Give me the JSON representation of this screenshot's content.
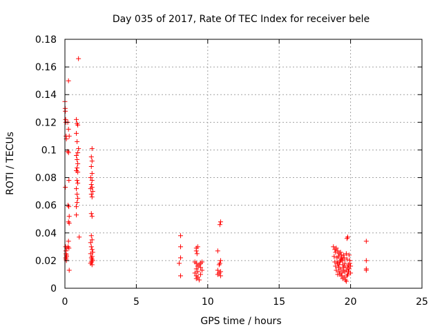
{
  "chart_data": {
    "type": "scatter",
    "title": "Day 035 of 2017, Rate Of TEC Index for receiver bele",
    "xlabel": "GPS time / hours",
    "ylabel": "ROTI / TECUs",
    "xlim": [
      0,
      25
    ],
    "ylim": [
      0,
      0.18
    ],
    "xticks": [
      "0",
      "5",
      "10",
      "15",
      "20",
      "25"
    ],
    "yticks": [
      "0",
      "0.02",
      "0.04",
      "0.06",
      "0.08",
      "0.1",
      "0.12",
      "0.14",
      "0.16",
      "0.18"
    ],
    "grid": true,
    "marker": "plus",
    "color": "#ff0000",
    "points": [
      [
        0.0,
        0.135
      ],
      [
        0.02,
        0.13
      ],
      [
        0.03,
        0.128
      ],
      [
        0.05,
        0.122
      ],
      [
        0.06,
        0.12
      ],
      [
        0.08,
        0.11
      ],
      [
        0.1,
        0.108
      ],
      [
        0.03,
        0.073
      ],
      [
        0.05,
        0.03
      ],
      [
        0.07,
        0.027
      ],
      [
        0.08,
        0.025
      ],
      [
        0.1,
        0.024
      ],
      [
        0.06,
        0.022
      ],
      [
        0.08,
        0.021
      ],
      [
        0.1,
        0.02
      ],
      [
        0.12,
        0.023
      ],
      [
        0.14,
        0.029
      ],
      [
        0.25,
        0.15
      ],
      [
        0.2,
        0.12
      ],
      [
        0.25,
        0.115
      ],
      [
        0.3,
        0.11
      ],
      [
        0.2,
        0.099
      ],
      [
        0.25,
        0.098
      ],
      [
        0.28,
        0.078
      ],
      [
        0.22,
        0.06
      ],
      [
        0.27,
        0.059
      ],
      [
        0.3,
        0.052
      ],
      [
        0.25,
        0.048
      ],
      [
        0.3,
        0.047
      ],
      [
        0.25,
        0.034
      ],
      [
        0.22,
        0.03
      ],
      [
        0.28,
        0.029
      ],
      [
        0.3,
        0.013
      ],
      [
        0.95,
        0.166
      ],
      [
        0.8,
        0.122
      ],
      [
        0.85,
        0.119
      ],
      [
        0.9,
        0.118
      ],
      [
        0.8,
        0.112
      ],
      [
        0.85,
        0.106
      ],
      [
        0.95,
        0.101
      ],
      [
        0.9,
        0.098
      ],
      [
        0.8,
        0.096
      ],
      [
        0.85,
        0.093
      ],
      [
        0.9,
        0.09
      ],
      [
        0.85,
        0.087
      ],
      [
        0.8,
        0.085
      ],
      [
        0.9,
        0.084
      ],
      [
        0.85,
        0.078
      ],
      [
        0.9,
        0.076
      ],
      [
        0.8,
        0.072
      ],
      [
        0.85,
        0.068
      ],
      [
        0.9,
        0.065
      ],
      [
        0.85,
        0.062
      ],
      [
        0.8,
        0.059
      ],
      [
        0.8,
        0.053
      ],
      [
        1.0,
        0.037
      ],
      [
        1.9,
        0.101
      ],
      [
        1.85,
        0.095
      ],
      [
        1.9,
        0.092
      ],
      [
        1.85,
        0.088
      ],
      [
        1.9,
        0.083
      ],
      [
        1.8,
        0.08
      ],
      [
        1.9,
        0.078
      ],
      [
        1.85,
        0.075
      ],
      [
        1.9,
        0.073
      ],
      [
        1.8,
        0.072
      ],
      [
        1.95,
        0.07
      ],
      [
        1.85,
        0.068
      ],
      [
        1.9,
        0.066
      ],
      [
        1.85,
        0.054
      ],
      [
        1.9,
        0.052
      ],
      [
        1.85,
        0.038
      ],
      [
        1.9,
        0.035
      ],
      [
        1.8,
        0.033
      ],
      [
        1.85,
        0.03
      ],
      [
        1.9,
        0.028
      ],
      [
        1.95,
        0.026
      ],
      [
        1.8,
        0.025
      ],
      [
        1.9,
        0.023
      ],
      [
        1.85,
        0.022
      ],
      [
        1.9,
        0.021
      ],
      [
        1.95,
        0.02
      ],
      [
        1.85,
        0.019
      ],
      [
        1.8,
        0.018
      ],
      [
        1.9,
        0.017
      ],
      [
        8.1,
        0.038
      ],
      [
        8.1,
        0.03
      ],
      [
        8.1,
        0.022
      ],
      [
        8.0,
        0.018
      ],
      [
        8.1,
        0.009
      ],
      [
        9.2,
        0.029
      ],
      [
        9.3,
        0.03
      ],
      [
        9.2,
        0.027
      ],
      [
        9.25,
        0.025
      ],
      [
        9.1,
        0.019
      ],
      [
        9.2,
        0.018
      ],
      [
        9.4,
        0.017
      ],
      [
        9.5,
        0.018
      ],
      [
        9.6,
        0.019
      ],
      [
        9.3,
        0.016
      ],
      [
        9.5,
        0.015
      ],
      [
        9.2,
        0.014
      ],
      [
        9.6,
        0.013
      ],
      [
        9.3,
        0.012
      ],
      [
        9.1,
        0.011
      ],
      [
        9.5,
        0.01
      ],
      [
        9.2,
        0.009
      ],
      [
        9.3,
        0.008
      ],
      [
        9.2,
        0.007
      ],
      [
        9.4,
        0.006
      ],
      [
        10.9,
        0.048
      ],
      [
        10.85,
        0.046
      ],
      [
        10.7,
        0.027
      ],
      [
        10.9,
        0.02
      ],
      [
        10.85,
        0.018
      ],
      [
        10.8,
        0.017
      ],
      [
        10.7,
        0.013
      ],
      [
        10.9,
        0.012
      ],
      [
        10.8,
        0.011
      ],
      [
        10.7,
        0.01
      ],
      [
        10.9,
        0.009
      ],
      [
        19.8,
        0.037
      ],
      [
        19.75,
        0.036
      ],
      [
        21.1,
        0.034
      ],
      [
        21.1,
        0.02
      ],
      [
        21.1,
        0.014
      ],
      [
        21.1,
        0.013
      ],
      [
        18.8,
        0.03
      ],
      [
        18.9,
        0.028
      ],
      [
        19.0,
        0.029
      ],
      [
        19.1,
        0.027
      ],
      [
        18.95,
        0.026
      ],
      [
        19.2,
        0.025
      ],
      [
        19.3,
        0.026
      ],
      [
        19.5,
        0.024
      ],
      [
        19.7,
        0.025
      ],
      [
        19.9,
        0.024
      ],
      [
        18.85,
        0.023
      ],
      [
        19.05,
        0.022
      ],
      [
        19.15,
        0.023
      ],
      [
        19.35,
        0.021
      ],
      [
        19.55,
        0.022
      ],
      [
        19.75,
        0.021
      ],
      [
        19.95,
        0.02
      ],
      [
        18.9,
        0.019
      ],
      [
        19.1,
        0.018
      ],
      [
        19.25,
        0.019
      ],
      [
        19.45,
        0.017
      ],
      [
        19.6,
        0.018
      ],
      [
        19.85,
        0.017
      ],
      [
        20.0,
        0.016
      ],
      [
        18.95,
        0.016
      ],
      [
        19.15,
        0.015
      ],
      [
        19.3,
        0.014
      ],
      [
        19.5,
        0.015
      ],
      [
        19.7,
        0.013
      ],
      [
        19.9,
        0.014
      ],
      [
        19.0,
        0.013
      ],
      [
        19.2,
        0.012
      ],
      [
        19.4,
        0.011
      ],
      [
        19.6,
        0.012
      ],
      [
        19.8,
        0.01
      ],
      [
        20.0,
        0.011
      ],
      [
        19.1,
        0.01
      ],
      [
        19.35,
        0.009
      ],
      [
        19.55,
        0.008
      ],
      [
        19.75,
        0.009
      ],
      [
        19.45,
        0.007
      ],
      [
        19.65,
        0.006
      ],
      [
        19.7,
        0.005
      ],
      [
        19.3,
        0.02
      ],
      [
        19.4,
        0.022
      ],
      [
        19.2,
        0.017
      ],
      [
        19.5,
        0.013
      ],
      [
        19.8,
        0.015
      ],
      [
        19.6,
        0.016
      ],
      [
        19.35,
        0.024
      ],
      [
        19.05,
        0.019
      ],
      [
        19.25,
        0.01
      ],
      [
        19.85,
        0.012
      ],
      [
        19.95,
        0.018
      ],
      [
        19.45,
        0.02
      ]
    ]
  }
}
